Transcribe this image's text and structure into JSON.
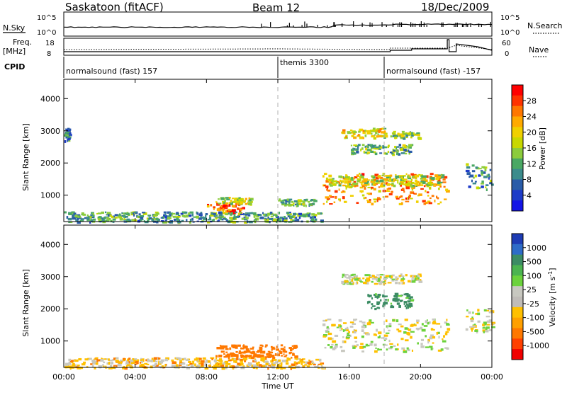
{
  "header": {
    "title": "Saskatoon (fitACF)",
    "beam": "Beam 12",
    "date": "18/Dec/2009"
  },
  "noise_panel": {
    "left_label": "N.Sky",
    "left_ticks": [
      "10^5",
      "10^0"
    ],
    "right_label": "N.Search",
    "right_ticks": [
      "10^5",
      "10^0"
    ]
  },
  "freq_panel": {
    "left_label_top": "Freq.",
    "left_label_bottom": "[MHz]",
    "left_ticks": [
      "18",
      "8"
    ],
    "right_label": "Nave",
    "right_ticks": [
      "60",
      "0"
    ]
  },
  "cpid": {
    "label": "CPID",
    "segments": [
      {
        "text": "normalsound (fast) 157",
        "start_ut": 0
      },
      {
        "text": "themis 3300",
        "start_ut": 12
      },
      {
        "text": "normalsound (fast) -157",
        "start_ut": 18
      }
    ]
  },
  "colorbars": {
    "power": {
      "title": "Power [dB]",
      "ticks": [
        "28",
        "24",
        "20",
        "16",
        "12",
        "8",
        "4"
      ],
      "colors": [
        "#ff0000",
        "#ff3300",
        "#ff7700",
        "#ffaa00",
        "#f0d000",
        "#c8d800",
        "#8ccc3c",
        "#4aa864",
        "#3c8c8c",
        "#2a5ca8",
        "#1e3cc8",
        "#1414e6"
      ]
    },
    "velocity": {
      "title": "Velocity [m s^-1]",
      "ticks": [
        "1000",
        "500",
        "100",
        "25",
        "-25",
        "-100",
        "-500",
        "-1000"
      ],
      "colors": [
        "#1e3cb4",
        "#2e6cc8",
        "#3c8c64",
        "#4cb450",
        "#6cd23c",
        "#c8c8c0",
        "#c0bcb8",
        "#ffc000",
        "#ffa000",
        "#ff7800",
        "#ff4000",
        "#f00000"
      ]
    }
  },
  "axes": {
    "x_label": "Time UT",
    "x_ticks": [
      "00:00",
      "04:00",
      "08:00",
      "12:00",
      "16:00",
      "20:00",
      "00:00"
    ],
    "y_label": "Slant Range [km]",
    "y_ticks": [
      "4000",
      "3000",
      "2000",
      "1000"
    ]
  },
  "chart_data": [
    {
      "type": "heatmap",
      "name": "power",
      "xlim_ut": [
        0,
        24
      ],
      "ylim_km": [
        180,
        4600
      ],
      "ylabel": "Slant Range [km]",
      "zlabel": "Power [dB]",
      "zlim": [
        0,
        30
      ],
      "echo_regions": [
        {
          "ut": [
            14.5,
            21.5
          ],
          "km": [
            750,
            1700
          ],
          "db": 22
        },
        {
          "ut": [
            14.8,
            21.2
          ],
          "km": [
            1300,
            1650
          ],
          "db": 16
        },
        {
          "ut": [
            15.5,
            18.0
          ],
          "km": [
            2800,
            3100
          ],
          "db": 18
        },
        {
          "ut": [
            18.3,
            20.0
          ],
          "km": [
            2800,
            3000
          ],
          "db": 14
        },
        {
          "ut": [
            16.0,
            19.5
          ],
          "km": [
            2300,
            2600
          ],
          "db": 12
        },
        {
          "ut": [
            8.0,
            10.0
          ],
          "km": [
            450,
            800
          ],
          "db": 24
        },
        {
          "ut": [
            8.5,
            10.5
          ],
          "km": [
            750,
            950
          ],
          "db": 16
        },
        {
          "ut": [
            12.0,
            14.0
          ],
          "km": [
            700,
            900
          ],
          "db": 12
        },
        {
          "ut": [
            22.5,
            24.0
          ],
          "km": [
            1200,
            2000
          ],
          "db": 10
        },
        {
          "ut": [
            0.0,
            14.5
          ],
          "km": [
            180,
            500
          ],
          "db": 10
        },
        {
          "ut": [
            0.0,
            0.3
          ],
          "km": [
            2700,
            3100
          ],
          "db": 8
        }
      ]
    },
    {
      "type": "heatmap",
      "name": "velocity",
      "xlim_ut": [
        0,
        24
      ],
      "ylim_km": [
        180,
        4600
      ],
      "ylabel": "Slant Range [km]",
      "zlabel": "Velocity [m s^-1]",
      "zlim": [
        -1000,
        1000
      ],
      "echo_regions": [
        {
          "ut": [
            14.5,
            21.5
          ],
          "km": [
            700,
            1700
          ],
          "ms": 0
        },
        {
          "ut": [
            15.5,
            20.0
          ],
          "km": [
            2800,
            3100
          ],
          "ms": 0
        },
        {
          "ut": [
            17.0,
            19.5
          ],
          "km": [
            2000,
            2500
          ],
          "ms": 150
        },
        {
          "ut": [
            8.5,
            13.0
          ],
          "km": [
            500,
            900
          ],
          "ms": -200
        },
        {
          "ut": [
            0.0,
            14.5
          ],
          "km": [
            180,
            500
          ],
          "ms": -50
        },
        {
          "ut": [
            22.5,
            24.0
          ],
          "km": [
            1300,
            2000
          ],
          "ms": 0
        }
      ]
    }
  ]
}
